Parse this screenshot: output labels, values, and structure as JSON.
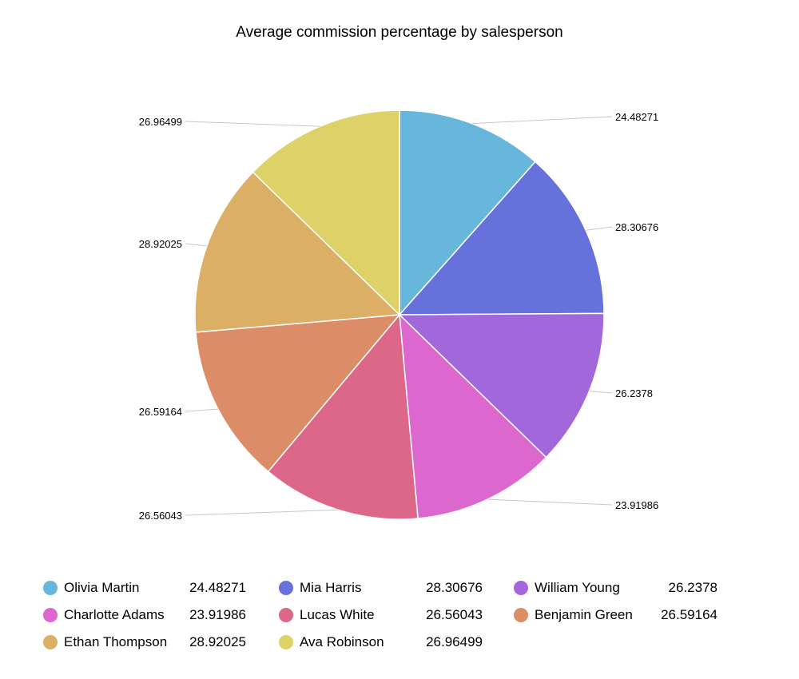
{
  "chart_data": {
    "type": "pie",
    "title": "Average commission percentage by salesperson",
    "start_angle": "top",
    "direction": "clockwise",
    "legend_position": "bottom",
    "slices": [
      {
        "name": "Olivia Martin",
        "value": 24.48271,
        "label": "24.48271",
        "color": "#67b7dc"
      },
      {
        "name": "Mia Harris",
        "value": 28.30676,
        "label": "28.30676",
        "color": "#6771dc"
      },
      {
        "name": "William Young",
        "value": 26.2378,
        "label": "26.2378",
        "color": "#a367dc"
      },
      {
        "name": "Charlotte Adams",
        "value": 23.91986,
        "label": "23.91986",
        "color": "#dc67ce"
      },
      {
        "name": "Lucas White",
        "value": 26.56043,
        "label": "26.56043",
        "color": "#dc6788"
      },
      {
        "name": "Benjamin Green",
        "value": 26.59164,
        "label": "26.59164",
        "color": "#dc8c67"
      },
      {
        "name": "Ethan Thompson",
        "value": 28.92025,
        "label": "28.92025",
        "color": "#dcaf67"
      },
      {
        "name": "Ava Robinson",
        "value": 26.96499,
        "label": "26.96499",
        "color": "#dcd267"
      }
    ]
  }
}
